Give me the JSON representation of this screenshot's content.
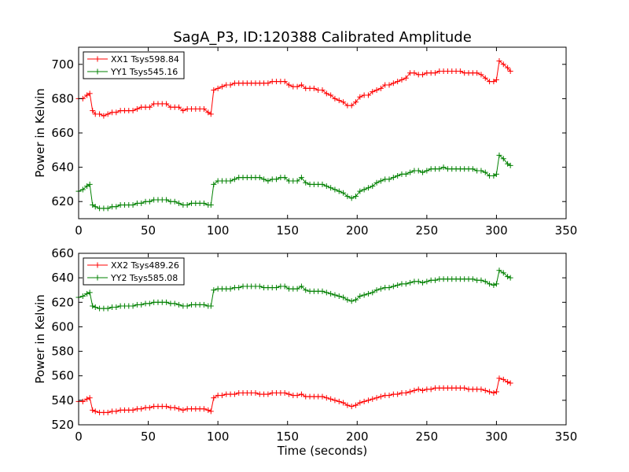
{
  "figure": {
    "title": "SagA_P3, ID:120388 Calibrated Amplitude",
    "xlabel": "Time (seconds)"
  },
  "chart_data": [
    {
      "type": "line",
      "ylabel": "Power in Kelvin",
      "xlim": [
        0,
        350
      ],
      "ylim": [
        610,
        710
      ],
      "xticks": [
        0,
        50,
        100,
        150,
        200,
        250,
        300,
        350
      ],
      "yticks": [
        620,
        640,
        660,
        680,
        700
      ],
      "grid": false,
      "legend_position": "top-left",
      "x": [
        0,
        3,
        6,
        8,
        10,
        12,
        15,
        18,
        21,
        24,
        27,
        30,
        33,
        36,
        39,
        42,
        45,
        48,
        51,
        54,
        57,
        60,
        63,
        66,
        69,
        72,
        75,
        78,
        81,
        84,
        87,
        90,
        93,
        95,
        97,
        100,
        103,
        106,
        109,
        112,
        115,
        118,
        121,
        124,
        127,
        130,
        133,
        136,
        139,
        142,
        145,
        148,
        151,
        154,
        157,
        160,
        163,
        166,
        169,
        172,
        175,
        178,
        181,
        184,
        187,
        190,
        193,
        196,
        199,
        202,
        205,
        208,
        211,
        214,
        217,
        220,
        223,
        226,
        229,
        232,
        235,
        238,
        241,
        244,
        247,
        250,
        253,
        256,
        259,
        262,
        265,
        268,
        271,
        274,
        277,
        280,
        283,
        286,
        289,
        292,
        295,
        298,
        300,
        302,
        305,
        308,
        310
      ],
      "series": [
        {
          "name": "XX1 Tsys598.84",
          "color": "#ff0000",
          "values": [
            680,
            680,
            682,
            683,
            673,
            671,
            671,
            670,
            671,
            672,
            672,
            673,
            673,
            673,
            673,
            674,
            675,
            675,
            675,
            677,
            677,
            677,
            677,
            675,
            675,
            675,
            673,
            674,
            674,
            674,
            674,
            674,
            672,
            671,
            685,
            686,
            687,
            688,
            688,
            689,
            689,
            689,
            689,
            689,
            689,
            689,
            689,
            689,
            690,
            690,
            690,
            690,
            688,
            687,
            687,
            688,
            686,
            686,
            686,
            685,
            685,
            683,
            682,
            680,
            679,
            678,
            676,
            676,
            678,
            681,
            682,
            682,
            684,
            685,
            686,
            688,
            688,
            689,
            690,
            691,
            692,
            695,
            695,
            694,
            694,
            695,
            695,
            695,
            696,
            696,
            696,
            696,
            696,
            696,
            695,
            695,
            695,
            695,
            694,
            692,
            690,
            690,
            691,
            702,
            700,
            698,
            696
          ]
        },
        {
          "name": "YY1 Tsys545.16",
          "color": "#008000",
          "values": [
            626,
            627,
            629,
            630,
            618,
            617,
            616,
            616,
            616,
            617,
            617,
            618,
            618,
            618,
            618,
            619,
            619,
            620,
            620,
            621,
            621,
            621,
            621,
            620,
            620,
            619,
            618,
            618,
            619,
            619,
            619,
            619,
            618,
            618,
            630,
            632,
            632,
            632,
            632,
            633,
            634,
            634,
            634,
            634,
            634,
            634,
            633,
            632,
            633,
            633,
            634,
            634,
            632,
            632,
            632,
            634,
            631,
            630,
            630,
            630,
            630,
            629,
            628,
            627,
            626,
            625,
            623,
            622,
            623,
            626,
            627,
            628,
            629,
            631,
            632,
            633,
            633,
            634,
            635,
            636,
            636,
            637,
            638,
            638,
            637,
            638,
            639,
            639,
            639,
            640,
            639,
            639,
            639,
            639,
            639,
            639,
            639,
            638,
            638,
            637,
            635,
            635,
            636,
            647,
            645,
            642,
            641
          ]
        }
      ]
    },
    {
      "type": "line",
      "ylabel": "Power in Kelvin",
      "xlabel": "Time (seconds)",
      "xlim": [
        0,
        350
      ],
      "ylim": [
        520,
        660
      ],
      "xticks": [
        0,
        50,
        100,
        150,
        200,
        250,
        300,
        350
      ],
      "yticks": [
        520,
        540,
        560,
        580,
        600,
        620,
        640,
        660
      ],
      "grid": false,
      "legend_position": "top-left",
      "x": [
        0,
        3,
        6,
        8,
        10,
        12,
        15,
        18,
        21,
        24,
        27,
        30,
        33,
        36,
        39,
        42,
        45,
        48,
        51,
        54,
        57,
        60,
        63,
        66,
        69,
        72,
        75,
        78,
        81,
        84,
        87,
        90,
        93,
        95,
        97,
        100,
        103,
        106,
        109,
        112,
        115,
        118,
        121,
        124,
        127,
        130,
        133,
        136,
        139,
        142,
        145,
        148,
        151,
        154,
        157,
        160,
        163,
        166,
        169,
        172,
        175,
        178,
        181,
        184,
        187,
        190,
        193,
        196,
        199,
        202,
        205,
        208,
        211,
        214,
        217,
        220,
        223,
        226,
        229,
        232,
        235,
        238,
        241,
        244,
        247,
        250,
        253,
        256,
        259,
        262,
        265,
        268,
        271,
        274,
        277,
        280,
        283,
        286,
        289,
        292,
        295,
        298,
        300,
        302,
        305,
        308,
        310
      ],
      "series": [
        {
          "name": "XX2 Tsys489.26",
          "color": "#ff0000",
          "values": [
            539,
            539,
            541,
            542,
            532,
            531,
            530,
            530,
            530,
            531,
            531,
            532,
            532,
            532,
            532,
            533,
            533,
            534,
            534,
            535,
            535,
            535,
            535,
            534,
            534,
            533,
            532,
            533,
            533,
            533,
            533,
            533,
            532,
            531,
            542,
            544,
            544,
            545,
            545,
            545,
            546,
            546,
            546,
            546,
            546,
            545,
            545,
            545,
            546,
            546,
            546,
            546,
            545,
            544,
            544,
            545,
            543,
            543,
            543,
            543,
            543,
            542,
            541,
            540,
            539,
            538,
            536,
            535,
            536,
            538,
            539,
            540,
            541,
            542,
            543,
            544,
            544,
            545,
            545,
            546,
            546,
            547,
            548,
            549,
            548,
            549,
            549,
            550,
            550,
            550,
            550,
            550,
            550,
            550,
            550,
            549,
            549,
            549,
            549,
            548,
            547,
            546,
            547,
            558,
            557,
            555,
            554
          ]
        },
        {
          "name": "YY2 Tsys585.08",
          "color": "#008000",
          "values": [
            624,
            625,
            627,
            628,
            617,
            616,
            615,
            615,
            615,
            616,
            616,
            617,
            617,
            617,
            617,
            618,
            618,
            619,
            619,
            620,
            620,
            620,
            620,
            619,
            619,
            618,
            617,
            617,
            618,
            618,
            618,
            618,
            617,
            617,
            630,
            631,
            631,
            631,
            631,
            632,
            632,
            633,
            633,
            633,
            633,
            633,
            632,
            632,
            632,
            632,
            633,
            633,
            631,
            631,
            631,
            633,
            630,
            629,
            629,
            629,
            629,
            628,
            627,
            626,
            625,
            624,
            622,
            621,
            622,
            625,
            626,
            627,
            628,
            630,
            631,
            632,
            632,
            633,
            634,
            635,
            635,
            636,
            637,
            637,
            636,
            637,
            638,
            638,
            639,
            639,
            639,
            639,
            639,
            639,
            639,
            639,
            639,
            638,
            638,
            637,
            635,
            634,
            635,
            646,
            644,
            641,
            640
          ]
        }
      ]
    }
  ]
}
